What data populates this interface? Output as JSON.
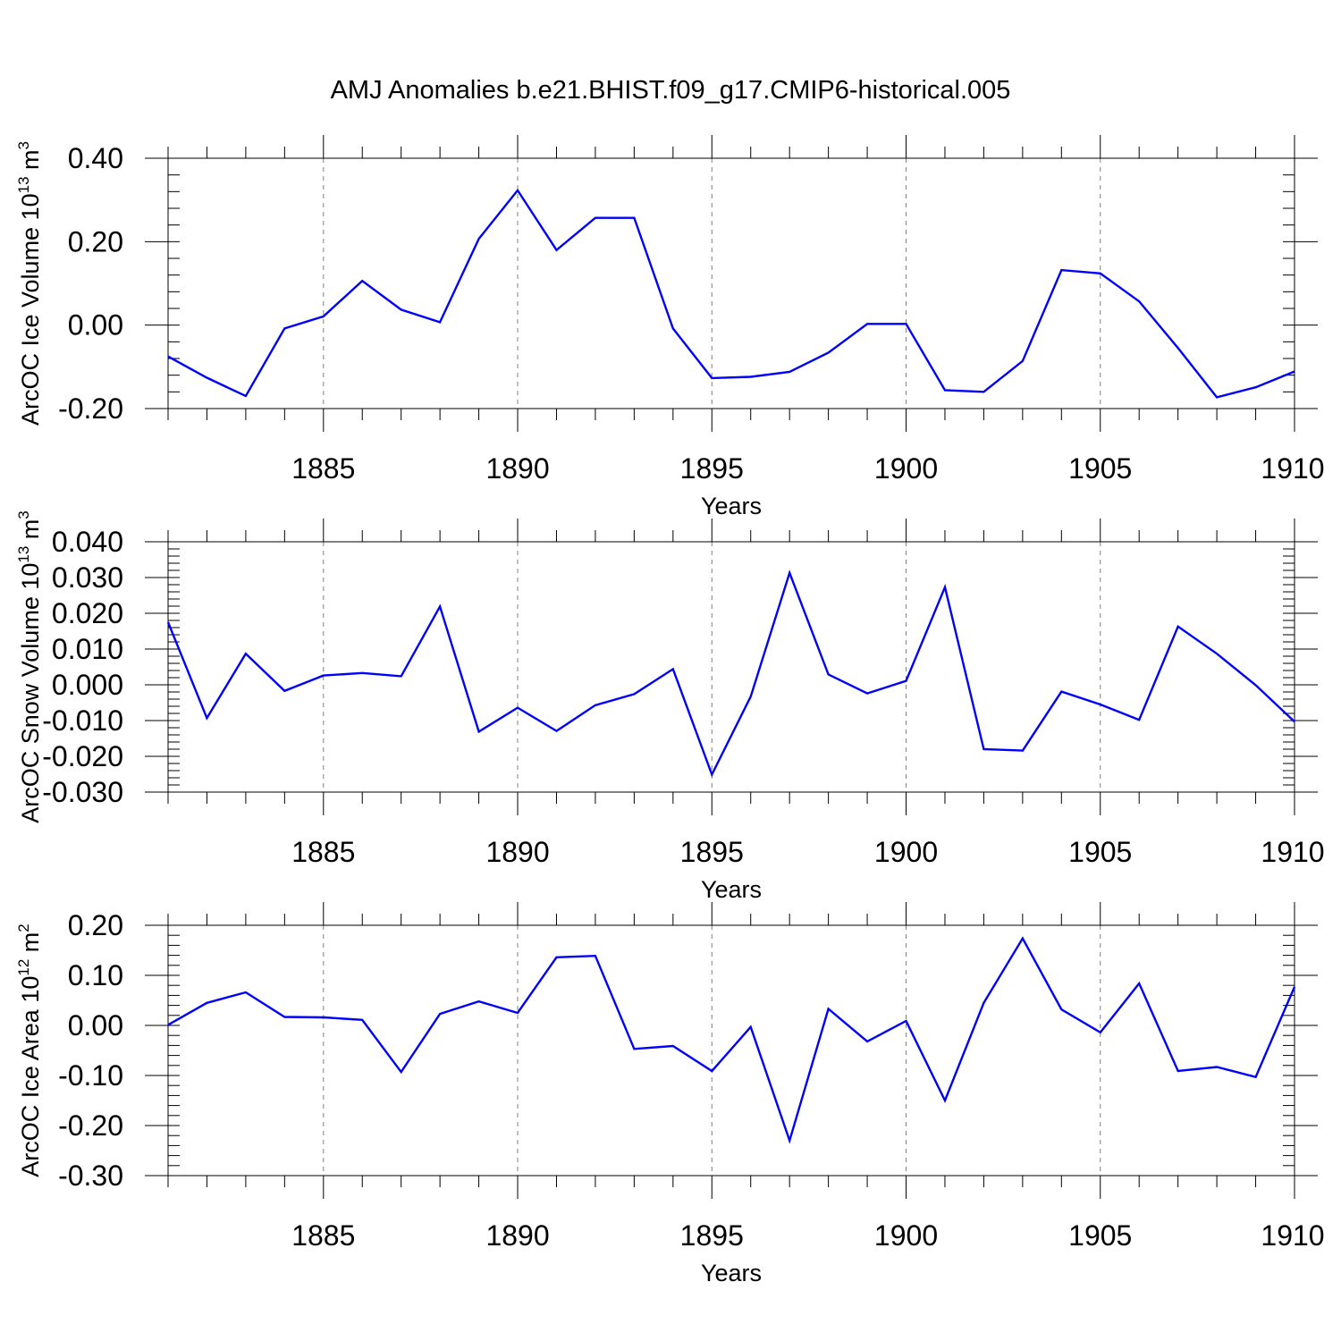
{
  "title": "AMJ Anomalies b.e21.BHIST.f09_g17.CMIP6-historical.005",
  "line_color": "#0000ff",
  "chart_data": [
    {
      "type": "line",
      "ylabel": "ArcOC Ice Volume 10",
      "ylabel_exponent": "13",
      "ylabel_unit": " m",
      "ylabel_unit_exponent": "3",
      "xlabel": "Years",
      "xlim": [
        1881,
        1910
      ],
      "ylim": [
        -0.2,
        0.4
      ],
      "yticks": [
        -0.2,
        0.0,
        0.2,
        0.4
      ],
      "ytick_labels": [
        "-0.20",
        "0.00",
        "0.20",
        "0.40"
      ],
      "yminor_step": 0.04,
      "xticks": [
        1885,
        1890,
        1895,
        1900,
        1905,
        1910
      ],
      "xtick_labels": [
        "1885",
        "1890",
        "1895",
        "1900",
        "1905",
        "1910"
      ],
      "x": [
        1881,
        1882,
        1883,
        1884,
        1885,
        1886,
        1887,
        1888,
        1889,
        1890,
        1891,
        1892,
        1893,
        1894,
        1895,
        1896,
        1897,
        1898,
        1899,
        1900,
        1901,
        1902,
        1903,
        1904,
        1905,
        1906,
        1907,
        1908,
        1909,
        1910
      ],
      "values": [
        -0.075,
        -0.126,
        -0.17,
        -0.008,
        0.021,
        0.106,
        0.037,
        0.007,
        0.207,
        0.323,
        0.18,
        0.257,
        0.257,
        -0.008,
        -0.127,
        -0.124,
        -0.112,
        -0.066,
        0.003,
        0.003,
        -0.156,
        -0.16,
        -0.086,
        0.132,
        0.124,
        0.057,
        -0.055,
        -0.173,
        -0.149,
        -0.111
      ]
    },
    {
      "type": "line",
      "ylabel": "ArcOC Snow Volume 10",
      "ylabel_exponent": "13",
      "ylabel_unit": " m",
      "ylabel_unit_exponent": "3",
      "xlabel": "Years",
      "xlim": [
        1881,
        1910
      ],
      "ylim": [
        -0.03,
        0.04
      ],
      "yticks": [
        -0.03,
        -0.02,
        -0.01,
        0.0,
        0.01,
        0.02,
        0.03,
        0.04
      ],
      "ytick_labels": [
        "-0.030",
        "-0.020",
        "-0.010",
        "0.000",
        "0.010",
        "0.020",
        "0.030",
        "0.040"
      ],
      "yminor_step": 0.002,
      "xticks": [
        1885,
        1890,
        1895,
        1900,
        1905,
        1910
      ],
      "xtick_labels": [
        "1885",
        "1890",
        "1895",
        "1900",
        "1905",
        "1910"
      ],
      "x": [
        1881,
        1882,
        1883,
        1884,
        1885,
        1886,
        1887,
        1888,
        1889,
        1890,
        1891,
        1892,
        1893,
        1894,
        1895,
        1896,
        1897,
        1898,
        1899,
        1900,
        1901,
        1902,
        1903,
        1904,
        1905,
        1906,
        1907,
        1908,
        1909,
        1910
      ],
      "values": [
        0.0175,
        -0.0093,
        0.0087,
        -0.0017,
        0.0026,
        0.0033,
        0.0024,
        0.0219,
        -0.0131,
        -0.0064,
        -0.0129,
        -0.0057,
        -0.0026,
        0.0044,
        -0.0251,
        -0.0033,
        0.0313,
        0.0029,
        -0.0024,
        0.0011,
        0.0273,
        -0.018,
        -0.0184,
        -0.0019,
        -0.0055,
        -0.0098,
        0.0163,
        0.0087,
        -0.0001,
        -0.0103
      ]
    },
    {
      "type": "line",
      "ylabel": "ArcOC Ice Area 10",
      "ylabel_exponent": "12",
      "ylabel_unit": " m",
      "ylabel_unit_exponent": "2",
      "xlabel": "Years",
      "xlim": [
        1881,
        1910
      ],
      "ylim": [
        -0.3,
        0.2
      ],
      "yticks": [
        -0.3,
        -0.2,
        -0.1,
        0.0,
        0.1,
        0.2
      ],
      "ytick_labels": [
        "-0.30",
        "-0.20",
        "-0.10",
        "0.00",
        "0.10",
        "0.20"
      ],
      "yminor_step": 0.02,
      "xticks": [
        1885,
        1890,
        1895,
        1900,
        1905,
        1910
      ],
      "xtick_labels": [
        "1885",
        "1890",
        "1895",
        "1900",
        "1905",
        "1910"
      ],
      "x": [
        1881,
        1882,
        1883,
        1884,
        1885,
        1886,
        1887,
        1888,
        1889,
        1890,
        1891,
        1892,
        1893,
        1894,
        1895,
        1896,
        1897,
        1898,
        1899,
        1900,
        1901,
        1902,
        1903,
        1904,
        1905,
        1906,
        1907,
        1908,
        1909,
        1910
      ],
      "values": [
        0.001,
        0.045,
        0.066,
        0.017,
        0.016,
        0.011,
        -0.093,
        0.023,
        0.048,
        0.025,
        0.136,
        0.139,
        -0.047,
        -0.041,
        -0.091,
        -0.003,
        -0.23,
        0.033,
        -0.032,
        0.009,
        -0.15,
        0.045,
        0.174,
        0.032,
        -0.014,
        0.084,
        -0.091,
        -0.083,
        -0.103,
        0.077
      ]
    }
  ]
}
